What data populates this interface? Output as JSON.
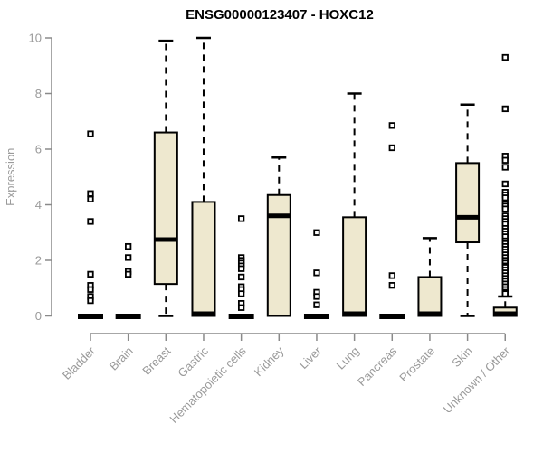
{
  "title": "ENSG00000123407 - HOXC12",
  "colors": {
    "box_fill": "#EEE8CF",
    "box_border": "#000000",
    "median": "#000000",
    "whisker": "#000000",
    "outlier_border": "#000000",
    "outlier_fill": "#ffffff",
    "axis_line": "#8a8a8a",
    "axis_text": "#9a9a9a",
    "title_text": "#000000",
    "background": "#ffffff"
  },
  "chart_data": {
    "type": "boxplot",
    "title": "ENSG00000123407 - HOXC12",
    "xlabel": "",
    "ylabel": "Expression",
    "ylim": [
      0,
      10
    ],
    "y_ticks": [
      0,
      2,
      4,
      6,
      8,
      10
    ],
    "grid": false,
    "legend": false,
    "categories": [
      "Bladder",
      "Brain",
      "Breast",
      "Gastric",
      "Hematopoietic cells",
      "Kidney",
      "Liver",
      "Lung",
      "Pancreas",
      "Prostate",
      "Skin",
      "Unknown / Other"
    ],
    "series": [
      {
        "name": "Bladder",
        "whislo": 0,
        "q1": 0,
        "med": 0,
        "q3": 0,
        "whishi": 0,
        "outliers": [
          6.55,
          4.4,
          4.2,
          3.4,
          1.5,
          1.1,
          0.95,
          0.7,
          0.55
        ]
      },
      {
        "name": "Brain",
        "whislo": 0,
        "q1": 0,
        "med": 0,
        "q3": 0,
        "whishi": 0,
        "outliers": [
          2.5,
          2.1,
          1.6,
          1.5
        ]
      },
      {
        "name": "Breast",
        "whislo": 0,
        "q1": 1.15,
        "med": 2.75,
        "q3": 6.6,
        "whishi": 9.9,
        "outliers": []
      },
      {
        "name": "Gastric",
        "whislo": 0,
        "q1": 0,
        "med": 0.08,
        "q3": 4.1,
        "whishi": 10,
        "outliers": []
      },
      {
        "name": "Hematopoietic cells",
        "whislo": 0,
        "q1": 0,
        "med": 0,
        "q3": 0,
        "whishi": 0,
        "outliers": [
          3.5,
          2.1,
          2.0,
          1.9,
          1.8,
          1.7,
          1.4,
          1.05,
          0.95,
          0.8,
          0.45,
          0.3
        ]
      },
      {
        "name": "Kidney",
        "whislo": 0,
        "q1": 0,
        "med": 3.6,
        "q3": 4.35,
        "whishi": 5.7,
        "outliers": []
      },
      {
        "name": "Liver",
        "whislo": 0,
        "q1": 0,
        "med": 0,
        "q3": 0,
        "whishi": 0,
        "outliers": [
          3.0,
          1.55,
          0.85,
          0.7,
          0.4
        ]
      },
      {
        "name": "Lung",
        "whislo": 0,
        "q1": 0,
        "med": 0.08,
        "q3": 3.55,
        "whishi": 8.0,
        "outliers": []
      },
      {
        "name": "Pancreas",
        "whislo": 0,
        "q1": 0,
        "med": 0,
        "q3": 0,
        "whishi": 0,
        "outliers": [
          6.85,
          6.05,
          1.45,
          1.1
        ]
      },
      {
        "name": "Prostate",
        "whislo": 0,
        "q1": 0,
        "med": 0.08,
        "q3": 1.4,
        "whishi": 2.8,
        "outliers": []
      },
      {
        "name": "Skin",
        "whislo": 0,
        "q1": 2.65,
        "med": 3.55,
        "q3": 5.5,
        "whishi": 7.6,
        "outliers": []
      },
      {
        "name": "Unknown / Other",
        "whislo": 0,
        "q1": 0,
        "med": 0.08,
        "q3": 0.3,
        "whishi": 0.7,
        "outliers": [
          9.3,
          7.45,
          5.75,
          5.6,
          5.35,
          4.75,
          4.45,
          4.35,
          4.25,
          4.05,
          3.95,
          3.85,
          3.6,
          3.5,
          3.4,
          3.3,
          3.15,
          3.05,
          2.95,
          2.85,
          2.7,
          2.6,
          2.5,
          2.4,
          2.3,
          2.2,
          2.1,
          2.0,
          1.9,
          1.8,
          1.75,
          1.65,
          1.55,
          1.45,
          1.35,
          1.25,
          1.15,
          1.05,
          0.95,
          0.85,
          0.8
        ]
      }
    ]
  },
  "layout_hints": {
    "x_tick_label_rotation_deg": -45,
    "y_axis_side": "left"
  }
}
